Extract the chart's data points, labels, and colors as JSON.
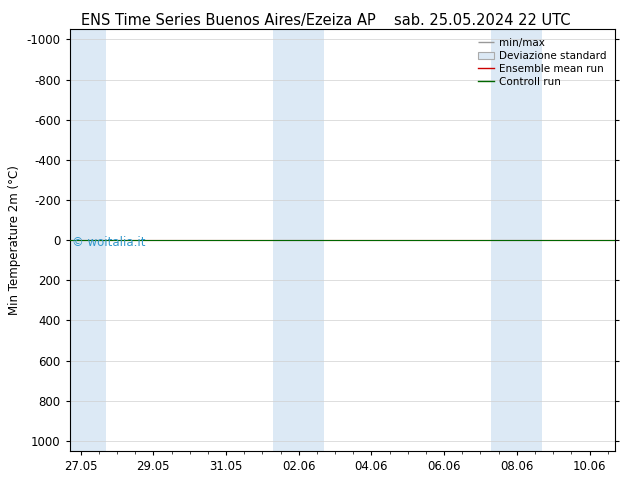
{
  "title_left": "ENS Time Series Buenos Aires/Ezeiza AP",
  "title_right": "sab. 25.05.2024 22 UTC",
  "ylabel": "Min Temperature 2m (°C)",
  "ylim_bottom": 1050,
  "ylim_top": -1050,
  "yticks": [
    -1000,
    -800,
    -600,
    -400,
    -200,
    0,
    200,
    400,
    600,
    800,
    1000
  ],
  "x_labels": [
    "27.05",
    "29.05",
    "31.05",
    "02.06",
    "04.06",
    "06.06",
    "08.06",
    "10.06"
  ],
  "x_positions": [
    0,
    2,
    4,
    6,
    8,
    10,
    12,
    14
  ],
  "xlim": [
    -0.3,
    14.7
  ],
  "shaded_columns": [
    {
      "x_start": -0.3,
      "x_end": 0.7
    },
    {
      "x_start": 5.3,
      "x_end": 6.7
    },
    {
      "x_start": 11.3,
      "x_end": 12.7
    }
  ],
  "shaded_color": "#dce9f5",
  "green_line_y": 0,
  "red_line_y": 0,
  "watermark": "© woitalia.it",
  "watermark_color": "#3399cc",
  "background_color": "#ffffff",
  "legend_entries": [
    "min/max",
    "Deviazione standard",
    "Ensemble mean run",
    "Controll run"
  ],
  "title_fontsize": 10.5,
  "axis_fontsize": 8.5
}
